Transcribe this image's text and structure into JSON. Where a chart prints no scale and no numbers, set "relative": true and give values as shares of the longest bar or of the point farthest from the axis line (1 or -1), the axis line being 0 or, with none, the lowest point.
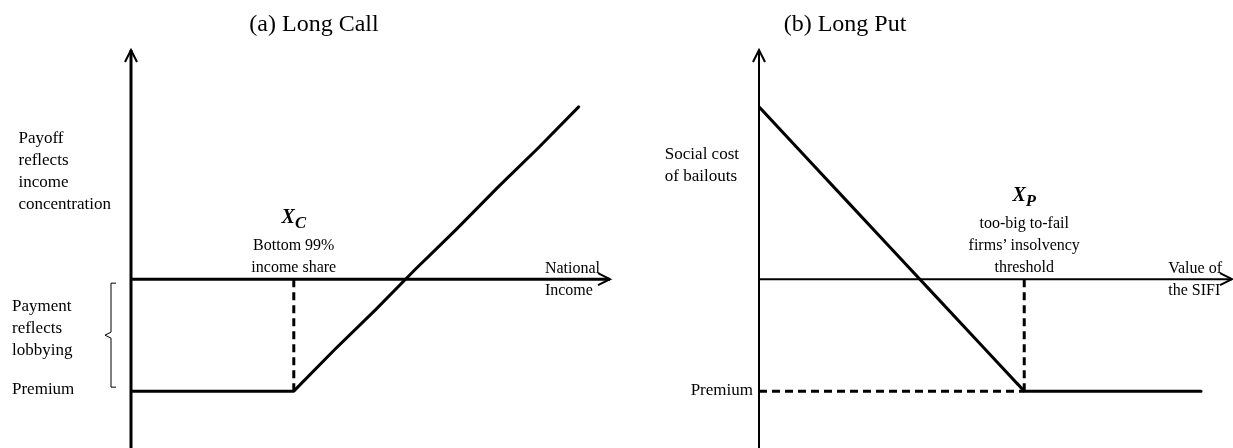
{
  "chart_data": [
    {
      "type": "line",
      "title": "(a) Long Call",
      "ylabel": "Payoff\nreflects\nincome\nconcentration",
      "xlabel": "National\nIncome",
      "relative": true,
      "categories": [
        null,
        null,
        null,
        null,
        null,
        null,
        null,
        null,
        null,
        null,
        null,
        null
      ],
      "series": [
        {
          "color": "#000000",
          "values": [
            -0.65,
            -0.65,
            -0.65,
            -0.65,
            -0.65,
            -0.41,
            -0.18,
            0.06,
            0.29,
            0.53,
            0.76,
            1
          ]
        }
      ],
      "annotations": [
        "X$_{C}$\nBottom 99%\nincome share",
        "Payment\nreflects\nlobbying",
        "Premium"
      ]
    },
    {
      "type": "line",
      "title": "(b) Long Put",
      "ylabel": "Social cost\nof bailouts",
      "xlabel": "Value of\nthe SIFI",
      "relative": true,
      "categories": [
        null,
        null,
        null,
        null,
        null,
        null,
        null,
        null,
        null,
        null,
        null
      ],
      "series": [
        {
          "color": "#000000",
          "values": [
            1,
            0.725,
            0.45,
            0.175,
            -0.1,
            -0.375,
            -0.65,
            -0.65,
            -0.65,
            -0.65,
            -0.65
          ]
        }
      ],
      "ref_lines": [
        {
          "axis": "y",
          "value": -0.65,
          "label": "Premium",
          "line_style": "dashed",
          "color": "#000000"
        }
      ],
      "annotations": [
        "X$_{P}$\ntoo-big to-fail\nfirms’ insolvency\nthreshold"
      ]
    }
  ]
}
